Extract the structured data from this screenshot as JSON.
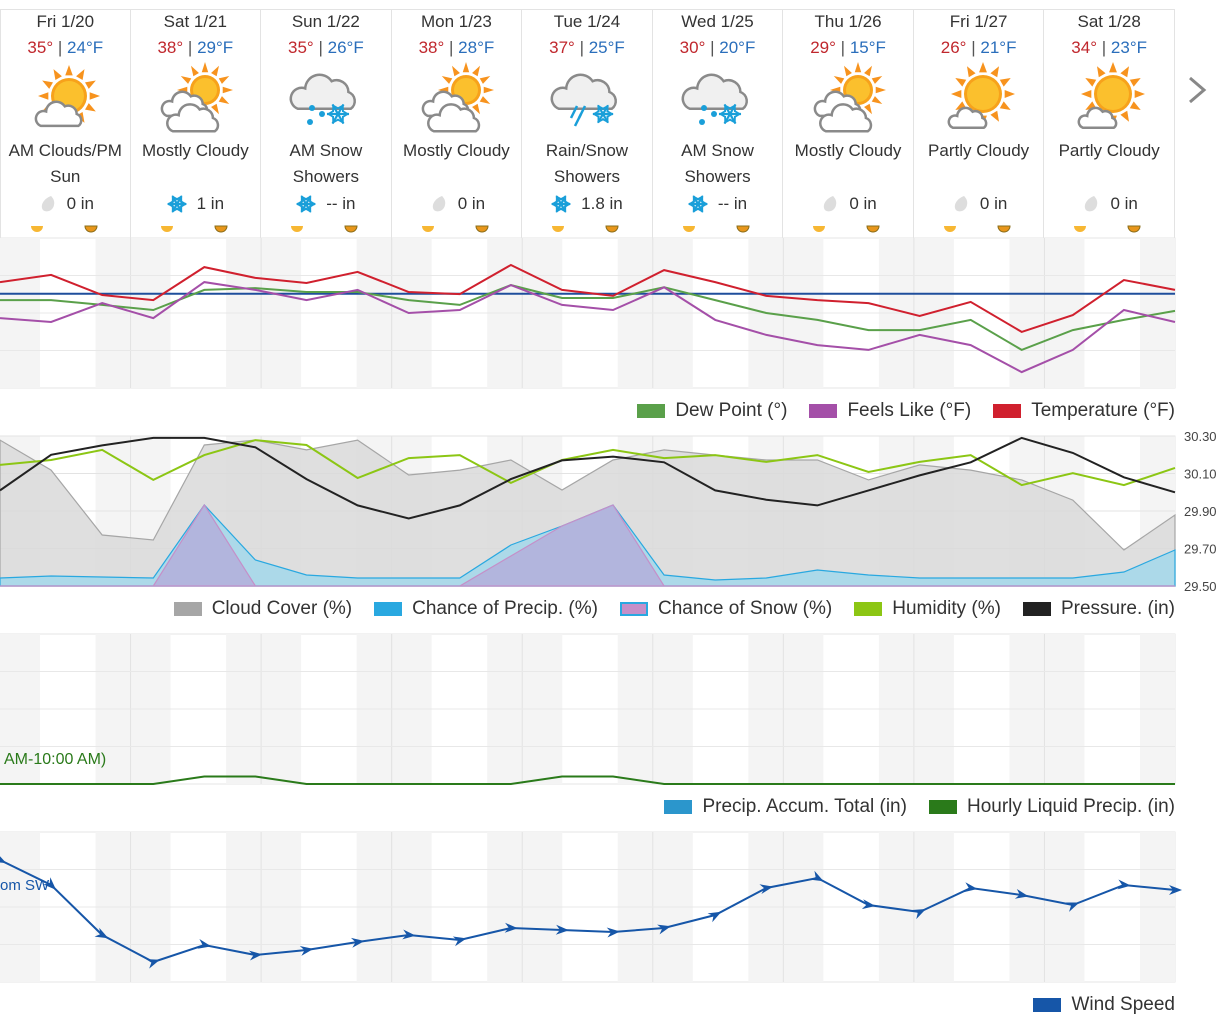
{
  "separator": "|",
  "days": [
    {
      "label": "Fri 1/20",
      "high": "35°",
      "low": "24°F",
      "icon": "sun-cloud",
      "condition": "AM Clouds/PM Sun",
      "precip": "0 in",
      "precip_icon": "drop"
    },
    {
      "label": "Sat 1/21",
      "high": "38°",
      "low": "29°F",
      "icon": "mostly-cloudy",
      "condition": "Mostly Cloudy",
      "precip": "1 in",
      "precip_icon": "snow"
    },
    {
      "label": "Sun 1/22",
      "high": "35°",
      "low": "26°F",
      "icon": "snow",
      "condition": "AM Snow Showers",
      "precip": "-- in",
      "precip_icon": "snow"
    },
    {
      "label": "Mon 1/23",
      "high": "38°",
      "low": "28°F",
      "icon": "mostly-cloudy",
      "condition": "Mostly Cloudy",
      "precip": "0 in",
      "precip_icon": "drop"
    },
    {
      "label": "Tue 1/24",
      "high": "37°",
      "low": "25°F",
      "icon": "rain-snow",
      "condition": "Rain/Snow Showers",
      "precip": "1.8 in",
      "precip_icon": "snow"
    },
    {
      "label": "Wed 1/25",
      "high": "30°",
      "low": "20°F",
      "icon": "snow",
      "condition": "AM Snow Showers",
      "precip": "-- in",
      "precip_icon": "snow"
    },
    {
      "label": "Thu 1/26",
      "high": "29°",
      "low": "15°F",
      "icon": "mostly-cloudy",
      "condition": "Mostly Cloudy",
      "precip": "0 in",
      "precip_icon": "drop"
    },
    {
      "label": "Fri 1/27",
      "high": "26°",
      "low": "21°F",
      "icon": "partly-cloudy",
      "condition": "Partly Cloudy",
      "precip": "0 in",
      "precip_icon": "drop"
    },
    {
      "label": "Sat 1/28",
      "high": "34°",
      "low": "23°F",
      "icon": "partly-cloudy",
      "condition": "Partly Cloudy",
      "precip": "0 in",
      "precip_icon": "drop"
    }
  ],
  "chart_data": [
    {
      "type": "line",
      "ylim": [
        10,
        45
      ],
      "reference_line": {
        "value": 32,
        "color": "#1f4e9c"
      },
      "series": [
        {
          "name": "Dew Point (°)",
          "color": "#5aa04a",
          "mark": "line",
          "values": [
            30.5,
            30.5,
            29.4,
            28.2,
            32.9,
            33.3,
            32.4,
            32.4,
            30.5,
            29.4,
            34.0,
            31.0,
            31.0,
            33.5,
            30.5,
            27.5,
            25.9,
            23.5,
            23.5,
            25.9,
            18.9,
            23.5,
            25.9,
            28.0
          ]
        },
        {
          "name": "Feels Like (°F)",
          "color": "#a44fa8",
          "mark": "line",
          "values": [
            26.3,
            25.4,
            29.8,
            26.3,
            34.7,
            32.9,
            30.5,
            32.9,
            27.5,
            28.2,
            34.0,
            29.4,
            28.2,
            33.5,
            25.9,
            22.4,
            20.0,
            18.9,
            22.4,
            20.0,
            13.7,
            18.9,
            28.2,
            25.4
          ]
        },
        {
          "name": "Temperature (°F)",
          "color": "#d0202e",
          "mark": "line",
          "values": [
            34.7,
            36.4,
            31.7,
            30.5,
            38.2,
            35.7,
            34.5,
            37.1,
            32.4,
            31.9,
            38.7,
            32.9,
            31.5,
            37.5,
            34.7,
            31.5,
            30.5,
            29.8,
            26.8,
            30.1,
            23.1,
            27.0,
            35.2,
            32.9
          ]
        }
      ]
    },
    {
      "type": "combo",
      "ylim": [
        0,
        100
      ],
      "y2lim": [
        29.5,
        30.3
      ],
      "y2ticks": [
        {
          "value": 29.5,
          "label": "29.50"
        },
        {
          "value": 29.7,
          "label": "29.70"
        },
        {
          "value": 29.9,
          "label": "29.90"
        },
        {
          "value": 30.1,
          "label": "30.10"
        },
        {
          "value": 30.3,
          "label": "30.30"
        }
      ],
      "series": [
        {
          "name": "Cloud Cover (%)",
          "color": "#a6a6a6",
          "mark": "area",
          "values": [
            97.3,
            77.3,
            34,
            30.7,
            94,
            97.3,
            90.7,
            97.3,
            74,
            77.3,
            84,
            64,
            84,
            90.7,
            87.3,
            84,
            84,
            70.7,
            80.7,
            77.3,
            70.7,
            57.3,
            24,
            47.3
          ]
        },
        {
          "name": "Chance of Precip. (%)",
          "color": "#29a8e0",
          "mark": "area",
          "values": [
            5.3,
            6.7,
            6,
            5.3,
            54,
            17.3,
            7.3,
            5.3,
            5.3,
            5.3,
            27.3,
            40,
            54,
            7.3,
            4,
            5.3,
            10.7,
            7.3,
            5.3,
            5.3,
            5.3,
            5.3,
            9.3,
            24
          ]
        },
        {
          "name": "Chance of Snow (%)",
          "color": "#c58fc8",
          "mark": "area",
          "values": [
            0,
            0,
            0,
            0,
            54,
            0,
            0,
            0,
            0,
            0,
            20,
            40,
            54,
            0,
            0,
            0,
            0,
            0,
            0,
            0,
            0,
            0,
            0,
            0
          ]
        },
        {
          "name": "Humidity (%)",
          "color": "#8cc614",
          "mark": "line",
          "values": [
            80.7,
            84,
            90.7,
            70.7,
            87.3,
            97.3,
            94,
            72,
            85.3,
            87.3,
            68.7,
            84,
            90.7,
            85.3,
            87.3,
            82.7,
            87.3,
            76,
            82.7,
            87.3,
            67.3,
            75.3,
            67.3,
            78.7
          ]
        },
        {
          "name": "Pressure. (in)",
          "color": "#222222",
          "mark": "line",
          "axis": "y2",
          "values": [
            30.01,
            30.2,
            30.25,
            30.29,
            30.29,
            30.24,
            30.07,
            29.93,
            29.86,
            29.93,
            30.07,
            30.17,
            30.19,
            30.16,
            30.01,
            29.96,
            29.93,
            30.01,
            30.09,
            30.16,
            30.29,
            30.21,
            30.08,
            30.0
          ]
        }
      ]
    },
    {
      "type": "line",
      "ylim": [
        0,
        0.2
      ],
      "annotation": "AM-10:00 AM)",
      "series": [
        {
          "name": "Precip. Accum. Total (in)",
          "color": "#2b96cc",
          "mark": "line"
        },
        {
          "name": "Hourly Liquid Precip. (in)",
          "color": "#2a7a1a",
          "mark": "line",
          "values": [
            0,
            0,
            0,
            0,
            0.01,
            0.01,
            0,
            0,
            0,
            0,
            0,
            0.01,
            0.01,
            0,
            0,
            0,
            0,
            0,
            0,
            0,
            0,
            0,
            0,
            0
          ]
        }
      ]
    },
    {
      "type": "line",
      "ylim": [
        0,
        30
      ],
      "annotation": "om SW",
      "arrows": true,
      "series": [
        {
          "name": "Wind Speed",
          "color": "#1656a8",
          "mark": "line",
          "values": [
            24.4,
            19.4,
            9.4,
            4,
            7.4,
            5.4,
            6.4,
            8,
            9.4,
            8.4,
            10.8,
            10.4,
            10,
            10.8,
            13.4,
            18.8,
            20.8,
            15.4,
            14,
            18.8,
            17.4,
            15.4,
            19.4,
            18.4
          ]
        }
      ]
    }
  ]
}
